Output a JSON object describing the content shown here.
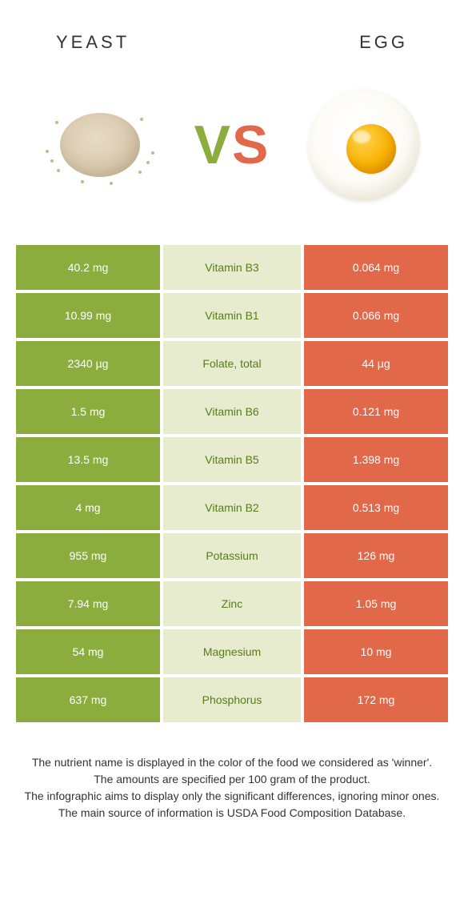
{
  "header": {
    "left_title": "YEAST",
    "right_title": "EGG"
  },
  "vs": {
    "v": "V",
    "s": "S"
  },
  "palette": {
    "green_dark": "#8aad3e",
    "green_light": "#e6eccd",
    "orange": "#e2684a",
    "white_text": "#ffffff",
    "green_text": "#5a7a1f"
  },
  "row_style": {
    "left_bg": "#8aad3e",
    "left_fg": "#ffffff",
    "mid_bg": "#e6eccd",
    "mid_fg": "#5a7a1f",
    "right_bg": "#e2684a",
    "right_fg": "#ffffff"
  },
  "rows": [
    {
      "left": "40.2 mg",
      "mid": "Vitamin B3",
      "right": "0.064 mg"
    },
    {
      "left": "10.99 mg",
      "mid": "Vitamin B1",
      "right": "0.066 mg"
    },
    {
      "left": "2340 µg",
      "mid": "Folate, total",
      "right": "44 µg"
    },
    {
      "left": "1.5 mg",
      "mid": "Vitamin B6",
      "right": "0.121 mg"
    },
    {
      "left": "13.5 mg",
      "mid": "Vitamin B5",
      "right": "1.398 mg"
    },
    {
      "left": "4 mg",
      "mid": "Vitamin B2",
      "right": "0.513 mg"
    },
    {
      "left": "955 mg",
      "mid": "Potassium",
      "right": "126 mg"
    },
    {
      "left": "7.94 mg",
      "mid": "Zinc",
      "right": "1.05 mg"
    },
    {
      "left": "54 mg",
      "mid": "Magnesium",
      "right": "10 mg"
    },
    {
      "left": "637 mg",
      "mid": "Phosphorus",
      "right": "172 mg"
    }
  ],
  "footer": {
    "line1": "The nutrient name is displayed in the color of the food we considered as 'winner'.",
    "line2": "The amounts are specified per 100 gram of the product.",
    "line3": "The infographic aims to display only the significant differences, ignoring minor ones.",
    "line4": "The main source of information is USDA Food Composition Database."
  }
}
